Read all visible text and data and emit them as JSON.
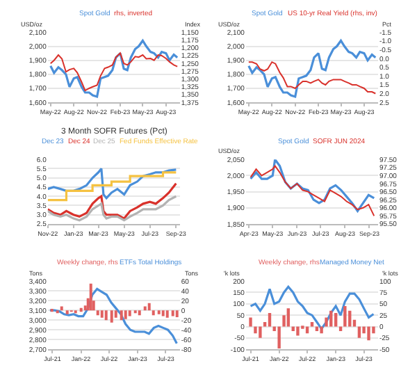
{
  "chart_data": [
    {
      "type": "line",
      "ylabel": "USD/oz",
      "y2label": "Index",
      "grid": "y",
      "legend": "top",
      "x": [
        "2022-05-01",
        "2022-05-15",
        "2022-06-01",
        "2022-06-15",
        "2022-07-01",
        "2022-07-15",
        "2022-08-01",
        "2022-08-15",
        "2022-09-01",
        "2022-09-15",
        "2022-10-01",
        "2022-10-15",
        "2022-11-01",
        "2022-11-15",
        "2022-12-01",
        "2022-12-15",
        "2023-01-01",
        "2023-01-15",
        "2023-02-01",
        "2023-02-15",
        "2023-03-01",
        "2023-03-15",
        "2023-04-01",
        "2023-04-15",
        "2023-05-01",
        "2023-05-15",
        "2023-06-01",
        "2023-06-15",
        "2023-07-01",
        "2023-07-15",
        "2023-08-01",
        "2023-08-15",
        "2023-09-01",
        "2023-09-15"
      ],
      "series": [
        {
          "name": "Spot Gold",
          "color": "#4a8fd9",
          "values": [
            1860,
            1810,
            1850,
            1830,
            1800,
            1710,
            1770,
            1780,
            1710,
            1670,
            1670,
            1650,
            1640,
            1770,
            1780,
            1790,
            1830,
            1920,
            1950,
            1840,
            1830,
            1920,
            1980,
            2000,
            2040,
            2000,
            1960,
            1950,
            1920,
            1960,
            1950,
            1900,
            1940,
            1920
          ]
        },
        {
          "name": "rhs, inverted",
          "color": "#d9312b",
          "axis": "y2",
          "values": [
            1250,
            1240,
            1223,
            1235,
            1277,
            1270,
            1266,
            1280,
            1310,
            1337,
            1330,
            1325,
            1320,
            1290,
            1266,
            1262,
            1255,
            1230,
            1217,
            1250,
            1255,
            1245,
            1228,
            1230,
            1223,
            1235,
            1234,
            1240,
            1223,
            1225,
            1234,
            1245,
            1255,
            1260
          ]
        }
      ],
      "xlim": [
        "2022-04-20",
        "2023-09-25"
      ],
      "xticks": [
        {
          "value": "2022-05-01",
          "label": "May-22"
        },
        {
          "value": "2022-08-01",
          "label": "Aug-22"
        },
        {
          "value": "2022-11-01",
          "label": "Nov-22"
        },
        {
          "value": "2023-02-01",
          "label": "Feb-23"
        },
        {
          "value": "2023-05-01",
          "label": "May-23"
        },
        {
          "value": "2023-08-01",
          "label": "Aug-23"
        }
      ],
      "ylim": [
        1600,
        2100
      ],
      "yticks": [
        {
          "value": 1600,
          "label": "1,600"
        },
        {
          "value": 1700,
          "label": "1,700"
        },
        {
          "value": 1800,
          "label": "1,800"
        },
        {
          "value": 1900,
          "label": "1,900"
        },
        {
          "value": 2000,
          "label": "2,000"
        },
        {
          "value": 2100,
          "label": "2,100"
        }
      ],
      "y2lim": [
        1375,
        1150
      ],
      "y2ticks": [
        {
          "value": 1150,
          "label": "1,150"
        },
        {
          "value": 1175,
          "label": "1,175"
        },
        {
          "value": 1200,
          "label": "1,200"
        },
        {
          "value": 1225,
          "label": "1,225"
        },
        {
          "value": 1250,
          "label": "1,250"
        },
        {
          "value": 1275,
          "label": "1,275"
        },
        {
          "value": 1300,
          "label": "1,300"
        },
        {
          "value": 1325,
          "label": "1,325"
        },
        {
          "value": 1350,
          "label": "1,350"
        },
        {
          "value": 1375,
          "label": "1,375"
        }
      ]
    },
    {
      "type": "line",
      "ylabel": "USD/oz",
      "y2label": "Pct",
      "grid": "y",
      "legend": "top",
      "x": [
        "2022-05-01",
        "2022-05-15",
        "2022-06-01",
        "2022-06-15",
        "2022-07-01",
        "2022-07-15",
        "2022-08-01",
        "2022-08-15",
        "2022-09-01",
        "2022-09-15",
        "2022-10-01",
        "2022-10-15",
        "2022-11-01",
        "2022-11-15",
        "2022-12-01",
        "2022-12-15",
        "2023-01-01",
        "2023-01-15",
        "2023-02-01",
        "2023-02-15",
        "2023-03-01",
        "2023-03-15",
        "2023-04-01",
        "2023-04-15",
        "2023-05-01",
        "2023-05-15",
        "2023-06-01",
        "2023-06-15",
        "2023-07-01",
        "2023-07-15",
        "2023-08-01",
        "2023-08-15",
        "2023-09-01",
        "2023-09-15"
      ],
      "series": [
        {
          "name": "Spot Gold",
          "color": "#4a8fd9",
          "values": [
            1860,
            1810,
            1850,
            1830,
            1800,
            1710,
            1770,
            1780,
            1710,
            1670,
            1670,
            1650,
            1640,
            1770,
            1780,
            1790,
            1830,
            1920,
            1950,
            1840,
            1830,
            1920,
            1980,
            2000,
            2040,
            2000,
            1960,
            1950,
            1920,
            1960,
            1950,
            1900,
            1940,
            1920
          ]
        },
        {
          "name": "US 10-yr Real Yield (rhs, inv)",
          "color": "#d9312b",
          "axis": "y2",
          "values": [
            0.2,
            0.2,
            0.3,
            0.6,
            0.7,
            0.6,
            0.2,
            0.3,
            0.8,
            1.1,
            1.6,
            1.6,
            1.7,
            1.5,
            1.3,
            1.3,
            1.4,
            1.3,
            1.2,
            1.4,
            1.5,
            1.3,
            1.2,
            1.2,
            1.2,
            1.3,
            1.4,
            1.5,
            1.5,
            1.6,
            1.7,
            1.9,
            1.9,
            2.0
          ]
        }
      ],
      "xlim": [
        "2022-04-20",
        "2023-09-25"
      ],
      "xticks": [
        {
          "value": "2022-05-01",
          "label": "May-22"
        },
        {
          "value": "2022-08-01",
          "label": "Aug-22"
        },
        {
          "value": "2022-11-01",
          "label": "Nov-22"
        },
        {
          "value": "2023-02-01",
          "label": "Feb-23"
        },
        {
          "value": "2023-05-01",
          "label": "May-23"
        },
        {
          "value": "2023-08-01",
          "label": "Aug-23"
        }
      ],
      "ylim": [
        1600,
        2100
      ],
      "yticks": [
        {
          "value": 1600,
          "label": "1,600"
        },
        {
          "value": 1700,
          "label": "1,700"
        },
        {
          "value": 1800,
          "label": "1,800"
        },
        {
          "value": 1900,
          "label": "1,900"
        },
        {
          "value": 2000,
          "label": "2,000"
        },
        {
          "value": 2100,
          "label": "2,100"
        }
      ],
      "y2lim": [
        2.5,
        -1.5
      ],
      "y2ticks": [
        -1.5,
        {
          "value": -1,
          "label": "-1.0"
        },
        -0.5,
        {
          "value": 0,
          "label": "0.0"
        },
        0.5,
        {
          "value": 1,
          "label": "1.0"
        },
        1.5,
        {
          "value": 2,
          "label": "2.0"
        },
        2.5
      ]
    },
    {
      "type": "line",
      "title": "3 Month SOFR Futures (Pct)",
      "grid": "y",
      "legend": "top",
      "x": [
        "2022-11-01",
        "2022-11-15",
        "2022-12-01",
        "2022-12-15",
        "2023-01-01",
        "2023-01-15",
        "2023-02-01",
        "2023-02-15",
        "2023-03-01",
        "2023-03-08",
        "2023-03-13",
        "2023-03-20",
        "2023-04-01",
        "2023-04-15",
        "2023-05-01",
        "2023-05-15",
        "2023-06-01",
        "2023-06-15",
        "2023-07-01",
        "2023-07-15",
        "2023-08-01",
        "2023-08-15",
        "2023-09-01"
      ],
      "series": [
        {
          "name": "Dec 23",
          "color": "#4a8fd9",
          "values": [
            4.4,
            4.5,
            4.4,
            4.3,
            4.3,
            4.4,
            4.6,
            5.0,
            5.3,
            5.5,
            4.1,
            3.9,
            4.2,
            4.4,
            4.1,
            4.6,
            4.8,
            5.1,
            5.2,
            5.3,
            5.3,
            5.4,
            5.45
          ]
        },
        {
          "name": "Dec 24",
          "color": "#d9312b",
          "values": [
            3.3,
            3.1,
            3.0,
            3.2,
            3.0,
            2.9,
            3.1,
            3.6,
            3.9,
            4.0,
            3.2,
            3.0,
            3.0,
            3.0,
            2.8,
            3.2,
            3.4,
            3.6,
            3.7,
            3.6,
            3.9,
            4.2,
            4.7
          ]
        },
        {
          "name": "Dec 25",
          "color": "#b3b3b3",
          "values": [
            3.2,
            3.0,
            2.9,
            3.0,
            2.8,
            2.7,
            2.9,
            3.3,
            3.5,
            3.6,
            3.0,
            2.8,
            2.9,
            2.9,
            2.7,
            2.9,
            3.1,
            3.3,
            3.3,
            3.3,
            3.5,
            3.8,
            4.0
          ]
        },
        {
          "name": "Fed Funds Effective Rate",
          "color": "#f5c242",
          "type": "step",
          "values": [
            3.8,
            3.8,
            3.8,
            4.3,
            4.3,
            4.3,
            4.3,
            4.6,
            4.6,
            4.6,
            4.6,
            4.6,
            4.8,
            4.8,
            4.8,
            5.1,
            5.1,
            5.1,
            5.1,
            5.1,
            5.3,
            5.3,
            5.3
          ]
        }
      ],
      "xlim": [
        "2022-11-01",
        "2023-09-10"
      ],
      "xticks": [
        {
          "value": "2022-11-01",
          "label": "Nov-22"
        },
        {
          "value": "2023-01-01",
          "label": "Jan-23"
        },
        {
          "value": "2023-03-01",
          "label": "Mar-23"
        },
        {
          "value": "2023-05-01",
          "label": "May-23"
        },
        {
          "value": "2023-07-01",
          "label": "Jul-23"
        },
        {
          "value": "2023-09-01",
          "label": "Sep-23"
        }
      ],
      "ylim": [
        2.5,
        6.0
      ],
      "yticks": [
        2.5,
        {
          "value": 3,
          "label": "3.0"
        },
        3.5,
        {
          "value": 4,
          "label": "4.0"
        },
        4.5,
        {
          "value": 5,
          "label": "5.0"
        },
        5.5,
        {
          "value": 6,
          "label": "6.0"
        }
      ]
    },
    {
      "type": "line",
      "ylabel": "USD/oz",
      "grid": "y",
      "legend": "top",
      "x": [
        "2023-04-03",
        "2023-04-10",
        "2023-04-17",
        "2023-04-24",
        "2023-05-01",
        "2023-05-04",
        "2023-05-10",
        "2023-05-17",
        "2023-05-24",
        "2023-06-01",
        "2023-06-08",
        "2023-06-15",
        "2023-06-22",
        "2023-06-29",
        "2023-07-06",
        "2023-07-13",
        "2023-07-20",
        "2023-07-27",
        "2023-08-03",
        "2023-08-10",
        "2023-08-17",
        "2023-08-24",
        "2023-08-31",
        "2023-09-07"
      ],
      "series": [
        {
          "name": "Spot Gold",
          "color": "#4a8fd9",
          "values": [
            1990,
            2010,
            1990,
            1990,
            2000,
            2050,
            2030,
            1980,
            1960,
            1975,
            1960,
            1955,
            1925,
            1915,
            1925,
            1960,
            1970,
            1955,
            1935,
            1915,
            1890,
            1915,
            1940,
            1930
          ]
        },
        {
          "name": "SOFR JUN 2024",
          "color": "#d9312b",
          "axis": "y2",
          "values": [
            96.95,
            97.2,
            97.0,
            97.1,
            97.2,
            97.3,
            97.1,
            96.8,
            96.6,
            96.75,
            96.55,
            96.5,
            96.4,
            96.3,
            96.2,
            96.55,
            96.45,
            96.35,
            96.2,
            96.1,
            95.95,
            96.0,
            96.1,
            95.75
          ]
        }
      ],
      "xlim": [
        "2023-03-28",
        "2023-09-12"
      ],
      "xticks": [
        {
          "value": "2023-04-01",
          "label": "Apr-23"
        },
        {
          "value": "2023-05-01",
          "label": "May-23"
        },
        {
          "value": "2023-06-01",
          "label": "Jun-23"
        },
        {
          "value": "2023-07-01",
          "label": "Jul-23"
        },
        {
          "value": "2023-08-01",
          "label": "Aug-23"
        },
        {
          "value": "2023-09-01",
          "label": "Sep-23"
        }
      ],
      "ylim": [
        1850,
        2050
      ],
      "yticks": [
        {
          "value": 1850,
          "label": "1,850"
        },
        {
          "value": 1900,
          "label": "1,900"
        },
        {
          "value": 1950,
          "label": "1,950"
        },
        {
          "value": 2000,
          "label": "2,000"
        },
        {
          "value": 2050,
          "label": "2,050"
        }
      ],
      "y2lim": [
        95.5,
        97.5
      ],
      "y2ticks": [
        {
          "value": 95.5,
          "label": "95.50"
        },
        95.75,
        {
          "value": 96,
          "label": "96.00"
        },
        96.25,
        {
          "value": 96.5,
          "label": "96.50"
        },
        96.75,
        {
          "value": 97,
          "label": "97.00"
        },
        97.25,
        {
          "value": 97.5,
          "label": "97.50"
        }
      ]
    },
    {
      "type": "line",
      "ylabel": "Tons",
      "y2label": "Tons",
      "grid": "y",
      "legend": "top",
      "series": [
        {
          "name": "Weekly change, rhs",
          "color": "#e06060",
          "type": "bar",
          "axis": "y2",
          "x": [
            "2021-07-01",
            "2021-08-01",
            "2021-09-01",
            "2021-10-01",
            "2021-11-01",
            "2021-12-01",
            "2022-01-01",
            "2022-02-01",
            "2022-02-20",
            "2022-03-05",
            "2022-03-20",
            "2022-04-15",
            "2022-05-15",
            "2022-06-15",
            "2022-07-15",
            "2022-08-15",
            "2022-09-15",
            "2022-10-15",
            "2022-11-15",
            "2022-12-15",
            "2023-01-15",
            "2023-02-15",
            "2023-03-15",
            "2023-04-15",
            "2023-05-15",
            "2023-06-15",
            "2023-07-15",
            "2023-08-15",
            "2023-09-10"
          ],
          "values": [
            3,
            -5,
            8,
            -8,
            -2,
            -6,
            5,
            10,
            25,
            55,
            20,
            -10,
            -15,
            -20,
            -25,
            -15,
            -20,
            -18,
            -12,
            -5,
            -10,
            8,
            15,
            -10,
            -8,
            -12,
            -15,
            -12,
            -14
          ]
        },
        {
          "name": "ETFs Total Holdings",
          "color": "#4a8fd9",
          "x": [
            "2021-06-15",
            "2021-07-15",
            "2021-08-15",
            "2021-09-15",
            "2021-10-15",
            "2021-11-15",
            "2021-12-15",
            "2022-01-15",
            "2022-02-15",
            "2022-03-15",
            "2022-04-15",
            "2022-05-15",
            "2022-06-15",
            "2022-07-15",
            "2022-08-15",
            "2022-09-15",
            "2022-10-15",
            "2022-11-15",
            "2022-12-15",
            "2023-01-15",
            "2023-02-15",
            "2023-03-15",
            "2023-04-15",
            "2023-05-15",
            "2023-06-15",
            "2023-07-15",
            "2023-08-15",
            "2023-09-10"
          ],
          "values": [
            3100,
            3100,
            3090,
            3060,
            3050,
            3060,
            3040,
            3040,
            3120,
            3260,
            3320,
            3290,
            3260,
            3180,
            3120,
            3060,
            2960,
            2900,
            2880,
            2880,
            2880,
            2860,
            2920,
            2940,
            2920,
            2900,
            2840,
            2760
          ]
        }
      ],
      "xlim": [
        "2021-06-01",
        "2023-09-30"
      ],
      "xticks": [
        {
          "value": "2021-07-01",
          "label": "Jul-21"
        },
        {
          "value": "2022-01-01",
          "label": "Jan-22"
        },
        {
          "value": "2022-07-01",
          "label": "Jul-22"
        },
        {
          "value": "2023-01-01",
          "label": "Jan-23"
        },
        {
          "value": "2023-07-01",
          "label": "Jul-23"
        }
      ],
      "ylim": [
        2700,
        3400
      ],
      "yticks": [
        {
          "value": 2700,
          "label": "2,700"
        },
        {
          "value": 2800,
          "label": "2,800"
        },
        {
          "value": 2900,
          "label": "2,900"
        },
        {
          "value": 3000,
          "label": "3,000"
        },
        {
          "value": 3100,
          "label": "3,100"
        },
        {
          "value": 3200,
          "label": "3,200"
        },
        {
          "value": 3300,
          "label": "3,300"
        },
        {
          "value": 3400,
          "label": "3,400"
        }
      ],
      "y2lim": [
        -80,
        60
      ],
      "y2ticks": [
        -80,
        -60,
        -40,
        -20,
        0,
        20,
        40,
        60
      ]
    },
    {
      "type": "line",
      "ylabel": "'k lots",
      "y2label": "'k lots",
      "grid": "y",
      "legend": "top",
      "x": [
        "2021-07-01",
        "2021-08-01",
        "2021-09-01",
        "2021-10-01",
        "2021-11-01",
        "2021-12-01",
        "2022-01-01",
        "2022-02-01",
        "2022-03-01",
        "2022-04-01",
        "2022-05-01",
        "2022-06-01",
        "2022-07-01",
        "2022-08-01",
        "2022-09-01",
        "2022-10-01",
        "2022-11-01",
        "2022-12-01",
        "2023-01-01",
        "2023-02-01",
        "2023-03-01",
        "2023-04-01",
        "2023-05-01",
        "2023-06-01",
        "2023-07-01",
        "2023-08-01",
        "2023-09-01"
      ],
      "series": [
        {
          "name": "Weekly change, rhs",
          "color": "#e06060",
          "type": "bar",
          "axis": "y2",
          "values": [
            20,
            -15,
            -25,
            10,
            30,
            -10,
            -48,
            25,
            40,
            -10,
            -20,
            -5,
            -15,
            10,
            -10,
            -15,
            20,
            35,
            30,
            -10,
            45,
            35,
            15,
            -25,
            -15,
            -30,
            -15
          ]
        },
        {
          "name": "Managed Money Net",
          "color": "#4a8fd9",
          "values": [
            90,
            100,
            70,
            100,
            165,
            100,
            110,
            150,
            175,
            150,
            110,
            90,
            60,
            50,
            20,
            -10,
            20,
            60,
            90,
            50,
            110,
            145,
            145,
            120,
            80,
            40,
            55
          ]
        }
      ],
      "xlim": [
        "2021-06-01",
        "2023-09-30"
      ],
      "xticks": [
        {
          "value": "2021-07-01",
          "label": "Jul-21"
        },
        {
          "value": "2022-01-01",
          "label": "Jan-22"
        },
        {
          "value": "2022-07-01",
          "label": "Jul-22"
        },
        {
          "value": "2023-01-01",
          "label": "Jan-23"
        },
        {
          "value": "2023-07-01",
          "label": "Jul-23"
        }
      ],
      "ylim": [
        -100,
        200
      ],
      "yticks": [
        -100,
        -50,
        0,
        50,
        100,
        150,
        200
      ],
      "y2lim": [
        -50,
        100
      ],
      "y2ticks": [
        -50,
        -25,
        0,
        25,
        50,
        75,
        100
      ]
    }
  ]
}
